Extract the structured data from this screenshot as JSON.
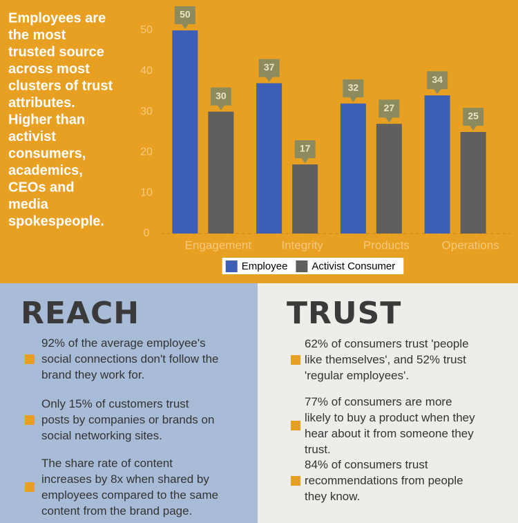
{
  "intro_lines": [
    "Employees are",
    "the most",
    "trusted source",
    "across most",
    "clusters of trust",
    "attributes.",
    "Higher than",
    "activist",
    "consumers,",
    "academics,",
    "CEOs and",
    "media",
    "spokespeople."
  ],
  "chart_data": {
    "type": "bar",
    "categories": [
      "Engagement",
      "Integrity",
      "Products",
      "Operations"
    ],
    "series": [
      {
        "name": "Employee",
        "color": "#3d5fb5",
        "values": [
          50,
          37,
          32,
          34
        ]
      },
      {
        "name": "Activist Consumer",
        "color": "#5f5f5f",
        "values": [
          30,
          17,
          27,
          25
        ]
      }
    ],
    "ylim": [
      0,
      55
    ],
    "yticks": [
      0,
      10,
      20,
      30,
      40,
      50
    ],
    "legend": "bottom"
  },
  "reach": {
    "title": "REACH",
    "items": [
      [
        "92% of the average employee's",
        "social connections don't follow the",
        "brand they work for."
      ],
      [
        "Only 15% of customers trust",
        "posts by companies or brands on",
        "social networking sites."
      ],
      [
        "The share rate of content",
        "increases by 8x when shared by",
        "employees compared to the same",
        "content from the brand page."
      ]
    ]
  },
  "trust": {
    "title": "TRUST",
    "items": [
      [
        "62% of consumers trust 'people",
        "like themselves', and 52% trust",
        "'regular employees'."
      ],
      [
        "77% of consumers are more",
        "likely to buy a product when they",
        "hear about it from someone they",
        "trust."
      ],
      [
        "84% of consumers trust",
        "recommendations from people",
        "they know."
      ]
    ]
  }
}
